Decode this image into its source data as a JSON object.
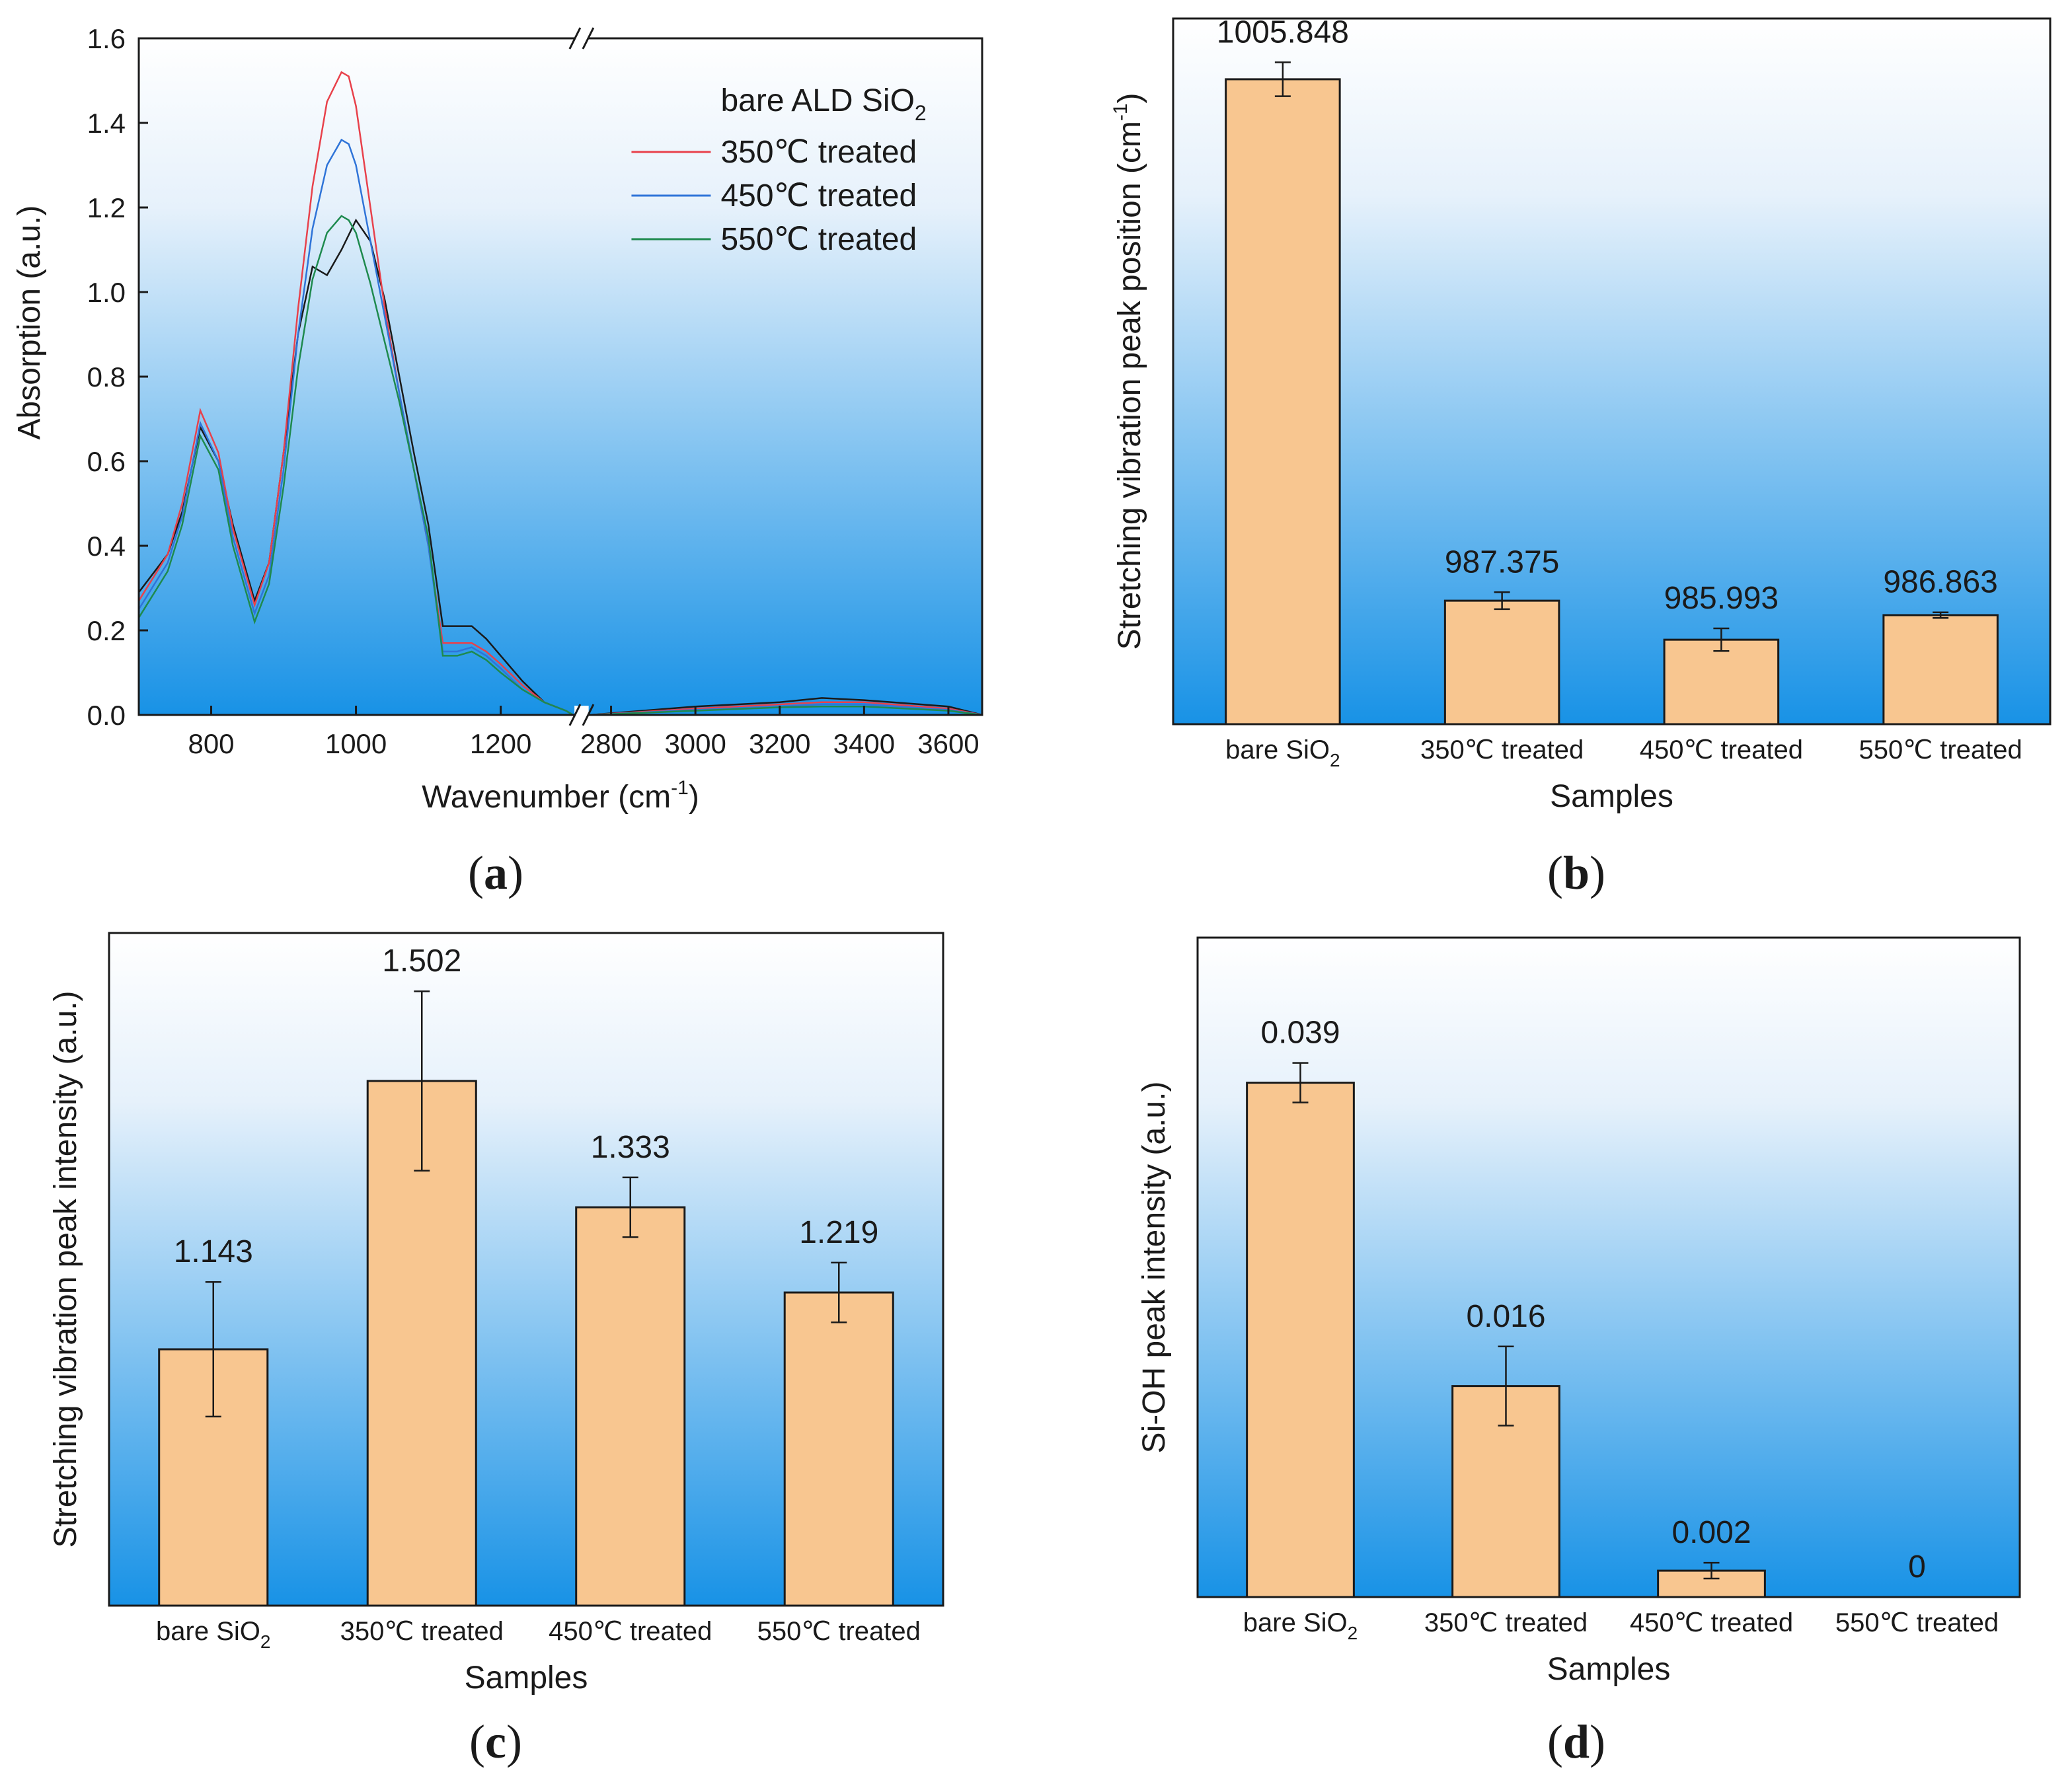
{
  "colors": {
    "bar_fill": "#f8c690",
    "bar_stroke": "#1a1a1a",
    "bg_top": "#ffffff",
    "bg_bottom": "#1892e6",
    "red": "#e8414b",
    "blue": "#2f74d8",
    "green": "#1e8a4e",
    "black": "#1a1a1a"
  },
  "chart_data": [
    {
      "panel": "a",
      "caption_letter": "a",
      "type": "line",
      "xlabel": "Wavenumber (cm",
      "xlabel_sup": "-1",
      "xlabel_end": ")",
      "ylabel": "Absorption (a.u.)",
      "ylim": [
        0.0,
        1.6
      ],
      "y_ticks": [
        "0.0",
        "0.2",
        "0.4",
        "0.6",
        "0.8",
        "1.0",
        "1.2",
        "1.4",
        "1.6"
      ],
      "x_break": true,
      "x_segments": [
        {
          "range": [
            700,
            1300
          ],
          "ticks": [
            "800",
            "1000",
            "1200"
          ]
        },
        {
          "range": [
            2750,
            3680
          ],
          "ticks": [
            "2800",
            "3000",
            "3200",
            "3400",
            "3600"
          ]
        }
      ],
      "legend": {
        "placement": "top-right",
        "title": "bare ALD SiO",
        "title_sub": "2",
        "entries": [
          "350℃ treated",
          "450℃ treated",
          "550℃ treated"
        ]
      },
      "series": [
        {
          "name": "bare ALD SiO2",
          "color": "black",
          "x": [
            700,
            740,
            760,
            785,
            810,
            830,
            860,
            880,
            900,
            920,
            940,
            960,
            980,
            1000,
            1020,
            1040,
            1060,
            1080,
            1100,
            1120,
            1140,
            1160,
            1180,
            1200,
            1230,
            1260,
            1290,
            1300
          ],
          "y": [
            0.29,
            0.38,
            0.48,
            0.68,
            0.6,
            0.45,
            0.27,
            0.36,
            0.62,
            0.9,
            1.06,
            1.04,
            1.1,
            1.17,
            1.12,
            0.98,
            0.8,
            0.62,
            0.45,
            0.21,
            0.21,
            0.21,
            0.18,
            0.14,
            0.08,
            0.03,
            0.01,
            0.0
          ],
          "x2": [
            2750,
            3000,
            3200,
            3300,
            3400,
            3600,
            3680
          ],
          "y2": [
            0.0,
            0.02,
            0.03,
            0.04,
            0.035,
            0.02,
            0.0
          ]
        },
        {
          "name": "350℃ treated",
          "color": "red",
          "x": [
            700,
            740,
            760,
            785,
            810,
            830,
            860,
            880,
            900,
            920,
            940,
            960,
            980,
            990,
            1000,
            1020,
            1040,
            1060,
            1080,
            1100,
            1120,
            1140,
            1160,
            1180,
            1200,
            1230,
            1260,
            1290,
            1300
          ],
          "y": [
            0.27,
            0.38,
            0.5,
            0.72,
            0.62,
            0.44,
            0.26,
            0.36,
            0.62,
            0.96,
            1.25,
            1.45,
            1.52,
            1.51,
            1.44,
            1.2,
            0.96,
            0.76,
            0.58,
            0.4,
            0.17,
            0.17,
            0.17,
            0.15,
            0.12,
            0.07,
            0.03,
            0.01,
            0.0
          ],
          "x2": [
            2750,
            3000,
            3200,
            3300,
            3400,
            3600,
            3680
          ],
          "y2": [
            0.0,
            0.015,
            0.025,
            0.03,
            0.03,
            0.015,
            0.0
          ]
        },
        {
          "name": "450℃ treated",
          "color": "blue",
          "x": [
            700,
            740,
            760,
            785,
            810,
            830,
            860,
            880,
            900,
            920,
            940,
            960,
            980,
            990,
            1000,
            1020,
            1040,
            1060,
            1080,
            1100,
            1120,
            1140,
            1160,
            1180,
            1200,
            1230,
            1260,
            1290,
            1300
          ],
          "y": [
            0.25,
            0.36,
            0.47,
            0.69,
            0.6,
            0.42,
            0.24,
            0.33,
            0.58,
            0.9,
            1.15,
            1.3,
            1.36,
            1.35,
            1.3,
            1.12,
            0.94,
            0.76,
            0.58,
            0.4,
            0.15,
            0.15,
            0.16,
            0.14,
            0.11,
            0.06,
            0.03,
            0.01,
            0.0
          ],
          "x2": [
            2750,
            3000,
            3200,
            3300,
            3400,
            3600,
            3680
          ],
          "y2": [
            0.0,
            0.012,
            0.02,
            0.025,
            0.025,
            0.012,
            0.0
          ]
        },
        {
          "name": "550℃ treated",
          "color": "green",
          "x": [
            700,
            740,
            760,
            785,
            810,
            830,
            860,
            880,
            900,
            920,
            940,
            960,
            980,
            990,
            1000,
            1020,
            1040,
            1060,
            1080,
            1100,
            1120,
            1140,
            1160,
            1180,
            1200,
            1230,
            1260,
            1290,
            1300
          ],
          "y": [
            0.23,
            0.34,
            0.45,
            0.66,
            0.58,
            0.4,
            0.22,
            0.31,
            0.54,
            0.82,
            1.03,
            1.14,
            1.18,
            1.17,
            1.14,
            1.02,
            0.88,
            0.74,
            0.58,
            0.42,
            0.14,
            0.14,
            0.15,
            0.13,
            0.1,
            0.06,
            0.03,
            0.01,
            0.0
          ],
          "x2": [
            2750,
            3000,
            3200,
            3300,
            3400,
            3600,
            3680
          ],
          "y2": [
            0.0,
            0.01,
            0.018,
            0.02,
            0.02,
            0.01,
            0.0
          ]
        }
      ]
    },
    {
      "panel": "b",
      "caption_letter": "b",
      "type": "bar",
      "xlabel": "Samples",
      "ylabel": "Stretching vibration peak position (cm",
      "ylabel_sup": "-1",
      "ylabel_end": ")",
      "ylim": [
        983.0,
        1008.0
      ],
      "categories": [
        "bare SiO",
        "350℃ treated",
        "450℃ treated",
        "550℃ treated"
      ],
      "category_subs": [
        "2",
        "",
        "",
        ""
      ],
      "values": [
        1005.848,
        987.375,
        985.993,
        986.863
      ],
      "value_labels": [
        "1005.848",
        "987.375",
        "985.993",
        "986.863"
      ],
      "errors": [
        0.6,
        0.3,
        0.4,
        0.1
      ]
    },
    {
      "panel": "c",
      "caption_letter": "c",
      "type": "bar",
      "xlabel": "Samples",
      "ylabel": "Stretching vibration peak intensity (a.u.)",
      "ylim": [
        0.8,
        1.7
      ],
      "categories": [
        "bare SiO",
        "350℃ treated",
        "450℃ treated",
        "550℃ treated"
      ],
      "category_subs": [
        "2",
        "",
        "",
        ""
      ],
      "values": [
        1.143,
        1.502,
        1.333,
        1.219
      ],
      "value_labels": [
        "1.143",
        "1.502",
        "1.333",
        "1.219"
      ],
      "errors": [
        0.09,
        0.12,
        0.04,
        0.04
      ]
    },
    {
      "panel": "d",
      "caption_letter": "d",
      "type": "bar",
      "xlabel": "Samples",
      "ylabel": "Si-OH peak intensity (a.u.)",
      "ylim": [
        0.0,
        0.05
      ],
      "categories": [
        "bare SiO",
        "350℃ treated",
        "450℃ treated",
        "550℃ treated"
      ],
      "category_subs": [
        "2",
        "",
        "",
        ""
      ],
      "values": [
        0.039,
        0.016,
        0.002,
        0.0
      ],
      "value_labels": [
        "0.039",
        "0.016",
        "0.002",
        "0"
      ],
      "errors": [
        0.0015,
        0.003,
        0.0006,
        0.0
      ]
    }
  ]
}
